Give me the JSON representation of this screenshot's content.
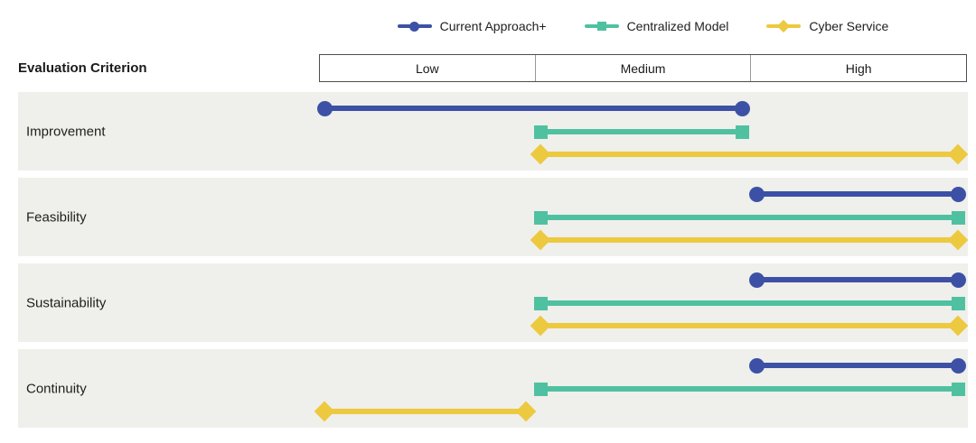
{
  "header": {
    "criterion_label": "Evaluation Criterion",
    "levels": [
      "Low",
      "Medium",
      "High"
    ]
  },
  "colors": {
    "row_band": "#EFEFEB",
    "header_border": "#4D4D4D",
    "header_divider": "#999999",
    "text": "#1E1E1E",
    "current_approach": "#3C51A6",
    "centralized_model": "#4FC1A1",
    "cyber_service": "#ECC93F"
  },
  "chart_data": {
    "type": "dumbbell-range",
    "title": "",
    "xlabel": "",
    "ylabel": "Evaluation Criterion",
    "axis": {
      "kind": "category-range",
      "labels": [
        "Low",
        "Medium",
        "High"
      ],
      "range": [
        0,
        3
      ],
      "low_span": [
        0,
        1
      ],
      "medium_span": [
        1,
        2
      ],
      "high_span": [
        2,
        3
      ],
      "grid": false,
      "legend_position": "top-center"
    },
    "categories": [
      "Improvement",
      "Feasibility",
      "Sustainability",
      "Continuity"
    ],
    "series": [
      {
        "name": "Current Approach+",
        "marker": "circle",
        "color": "#3C51A6",
        "ranges": [
          [
            0,
            2
          ],
          [
            2,
            3
          ],
          [
            2,
            3
          ],
          [
            2,
            3
          ]
        ],
        "ranges_labels": [
          [
            "Low",
            "Medium"
          ],
          [
            "High",
            "High"
          ],
          [
            "High",
            "High"
          ],
          [
            "High",
            "High"
          ]
        ]
      },
      {
        "name": "Centralized Model",
        "marker": "square",
        "color": "#4FC1A1",
        "ranges": [
          [
            1,
            2
          ],
          [
            1,
            3
          ],
          [
            1,
            3
          ],
          [
            1,
            3
          ]
        ],
        "ranges_labels": [
          [
            "Medium",
            "Medium"
          ],
          [
            "Medium",
            "High"
          ],
          [
            "Medium",
            "High"
          ],
          [
            "Medium",
            "High"
          ]
        ]
      },
      {
        "name": "Cyber Service",
        "marker": "diamond",
        "color": "#ECC93F",
        "ranges": [
          [
            1,
            3
          ],
          [
            1,
            3
          ],
          [
            1,
            3
          ],
          [
            0,
            1
          ]
        ],
        "ranges_labels": [
          [
            "Medium",
            "High"
          ],
          [
            "Medium",
            "High"
          ],
          [
            "Medium",
            "High"
          ],
          [
            "Low",
            "Low"
          ]
        ]
      }
    ]
  },
  "layout_note": "rows are shaded bands; each band shows one horizontal dumbbell range per series ordered top-to-bottom: Current Approach+, Centralized Model, Cyber Service"
}
